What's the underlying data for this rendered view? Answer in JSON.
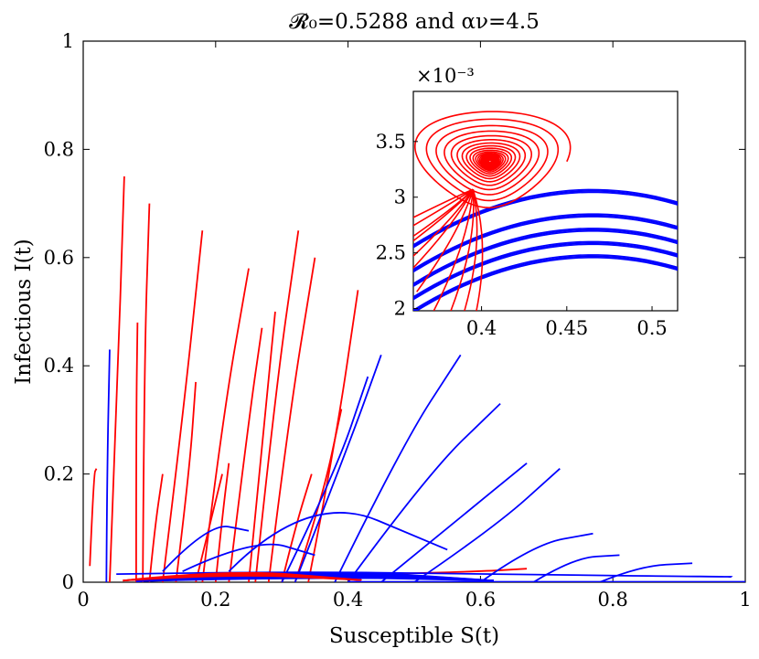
{
  "chart_data": {
    "type": "line",
    "title": "𝓡₀=0.5288 and αν=4.5",
    "xlabel": "Susceptible S(t)",
    "ylabel": "Infectious I(t)",
    "xlim": [
      0,
      1
    ],
    "ylim": [
      0,
      1
    ],
    "xticks": [
      "0",
      "0.2",
      "0.4",
      "0.6",
      "0.8",
      "1"
    ],
    "yticks": [
      "0",
      "0.2",
      "0.4",
      "0.6",
      "0.8",
      "1"
    ],
    "colors": {
      "red": "#ff0000",
      "blue": "#0000ff"
    },
    "series": [
      {
        "name": "red-1",
        "color": "red",
        "points": [
          [
            0.01,
            0.03
          ],
          [
            0.016,
            0.2
          ],
          [
            0.02,
            0.21
          ]
        ]
      },
      {
        "name": "red-2",
        "color": "red",
        "points": [
          [
            0.04,
            0.0
          ],
          [
            0.05,
            0.3
          ],
          [
            0.062,
            0.75
          ]
        ]
      },
      {
        "name": "red-3",
        "color": "red",
        "points": [
          [
            0.08,
            0.0
          ],
          [
            0.08,
            0.3
          ],
          [
            0.082,
            0.48
          ]
        ]
      },
      {
        "name": "red-4",
        "color": "red",
        "points": [
          [
            0.09,
            0.0
          ],
          [
            0.092,
            0.4
          ],
          [
            0.1,
            0.7
          ]
        ]
      },
      {
        "name": "red-5",
        "color": "red",
        "points": [
          [
            0.1,
            0.0
          ],
          [
            0.108,
            0.1
          ],
          [
            0.12,
            0.2
          ]
        ]
      },
      {
        "name": "red-6",
        "color": "red",
        "points": [
          [
            0.12,
            0.0
          ],
          [
            0.15,
            0.3
          ],
          [
            0.18,
            0.65
          ]
        ]
      },
      {
        "name": "red-7",
        "color": "red",
        "points": [
          [
            0.14,
            0.0
          ],
          [
            0.16,
            0.2
          ],
          [
            0.17,
            0.37
          ]
        ]
      },
      {
        "name": "red-8",
        "color": "red",
        "points": [
          [
            0.17,
            0.0
          ],
          [
            0.19,
            0.1
          ],
          [
            0.21,
            0.2
          ]
        ]
      },
      {
        "name": "red-9",
        "color": "red",
        "points": [
          [
            0.18,
            0.0
          ],
          [
            0.21,
            0.3
          ],
          [
            0.25,
            0.58
          ]
        ]
      },
      {
        "name": "red-10",
        "color": "red",
        "points": [
          [
            0.2,
            0.0
          ],
          [
            0.21,
            0.12
          ],
          [
            0.22,
            0.22
          ]
        ]
      },
      {
        "name": "red-11",
        "color": "red",
        "points": [
          [
            0.22,
            0.0
          ],
          [
            0.25,
            0.3
          ],
          [
            0.27,
            0.47
          ]
        ]
      },
      {
        "name": "red-12",
        "color": "red",
        "points": [
          [
            0.25,
            0.0
          ],
          [
            0.27,
            0.25
          ],
          [
            0.29,
            0.5
          ]
        ]
      },
      {
        "name": "red-13",
        "color": "red",
        "points": [
          [
            0.26,
            0.0
          ],
          [
            0.29,
            0.35
          ],
          [
            0.325,
            0.65
          ]
        ]
      },
      {
        "name": "red-14",
        "color": "red",
        "points": [
          [
            0.28,
            0.0
          ],
          [
            0.31,
            0.3
          ],
          [
            0.35,
            0.6
          ]
        ]
      },
      {
        "name": "red-15",
        "color": "red",
        "points": [
          [
            0.3,
            0.0
          ],
          [
            0.32,
            0.1
          ],
          [
            0.345,
            0.2
          ]
        ]
      },
      {
        "name": "red-16",
        "color": "red",
        "points": [
          [
            0.32,
            0.0
          ],
          [
            0.36,
            0.15
          ],
          [
            0.39,
            0.32
          ]
        ]
      },
      {
        "name": "red-17",
        "color": "red",
        "points": [
          [
            0.34,
            0.0
          ],
          [
            0.38,
            0.25
          ],
          [
            0.415,
            0.54
          ]
        ]
      },
      {
        "name": "red-18",
        "color": "red",
        "points": [
          [
            0.3,
            0.01
          ],
          [
            0.45,
            0.015
          ],
          [
            0.6,
            0.02
          ],
          [
            0.67,
            0.025
          ]
        ]
      },
      {
        "name": "blue-1",
        "color": "blue",
        "points": [
          [
            0.035,
            0.0
          ],
          [
            0.036,
            0.2
          ],
          [
            0.04,
            0.43
          ]
        ]
      },
      {
        "name": "blue-2",
        "color": "blue",
        "points": [
          [
            0.12,
            0.02
          ],
          [
            0.19,
            0.11
          ],
          [
            0.25,
            0.095
          ]
        ]
      },
      {
        "name": "blue-3",
        "color": "blue",
        "points": [
          [
            0.15,
            0.02
          ],
          [
            0.26,
            0.083
          ],
          [
            0.35,
            0.05
          ]
        ]
      },
      {
        "name": "blue-4",
        "color": "blue",
        "points": [
          [
            0.22,
            0.02
          ],
          [
            0.34,
            0.168
          ],
          [
            0.55,
            0.06
          ]
        ]
      },
      {
        "name": "blue-5",
        "color": "blue",
        "points": [
          [
            0.3,
            0.0
          ],
          [
            0.38,
            0.2
          ],
          [
            0.43,
            0.38
          ]
        ]
      },
      {
        "name": "blue-6",
        "color": "blue",
        "points": [
          [
            0.32,
            0.0
          ],
          [
            0.4,
            0.25
          ],
          [
            0.45,
            0.42
          ]
        ]
      },
      {
        "name": "blue-7",
        "color": "blue",
        "points": [
          [
            0.38,
            0.0
          ],
          [
            0.48,
            0.25
          ],
          [
            0.57,
            0.42
          ]
        ]
      },
      {
        "name": "blue-8",
        "color": "blue",
        "points": [
          [
            0.4,
            0.0
          ],
          [
            0.52,
            0.2
          ],
          [
            0.63,
            0.33
          ]
        ]
      },
      {
        "name": "blue-9",
        "color": "blue",
        "points": [
          [
            0.45,
            0.0
          ],
          [
            0.57,
            0.12
          ],
          [
            0.67,
            0.22
          ]
        ]
      },
      {
        "name": "blue-10",
        "color": "blue",
        "points": [
          [
            0.5,
            0.0
          ],
          [
            0.62,
            0.1
          ],
          [
            0.72,
            0.21
          ]
        ]
      },
      {
        "name": "blue-11",
        "color": "blue",
        "points": [
          [
            0.6,
            0.0
          ],
          [
            0.68,
            0.07
          ],
          [
            0.77,
            0.09
          ]
        ]
      },
      {
        "name": "blue-12",
        "color": "blue",
        "points": [
          [
            0.68,
            0.0
          ],
          [
            0.74,
            0.045
          ],
          [
            0.81,
            0.05
          ]
        ]
      },
      {
        "name": "blue-13",
        "color": "blue",
        "points": [
          [
            0.78,
            0.0
          ],
          [
            0.84,
            0.03
          ],
          [
            0.92,
            0.035
          ]
        ]
      },
      {
        "name": "blue-14",
        "color": "blue",
        "points": [
          [
            0.05,
            0.015
          ],
          [
            0.3,
            0.02
          ],
          [
            0.6,
            0.015
          ],
          [
            0.98,
            0.01
          ]
        ]
      }
    ],
    "inset": {
      "xlim": [
        0.36,
        0.515
      ],
      "ylim": [
        1.98,
        3.95
      ],
      "multiplier": "×10⁻³",
      "xticks": [
        "0.4",
        "0.45",
        "0.5"
      ],
      "yticks": [
        "2",
        "2.5",
        "3",
        "3.5"
      ],
      "equilibrium": [
        0.405,
        3.32
      ],
      "blue_curves": [
        [
          2.47,
          2.4
        ],
        [
          2.57,
          2.45
        ],
        [
          2.67,
          2.55
        ],
        [
          2.78,
          2.68
        ],
        [
          2.98,
          2.84
        ]
      ]
    }
  }
}
